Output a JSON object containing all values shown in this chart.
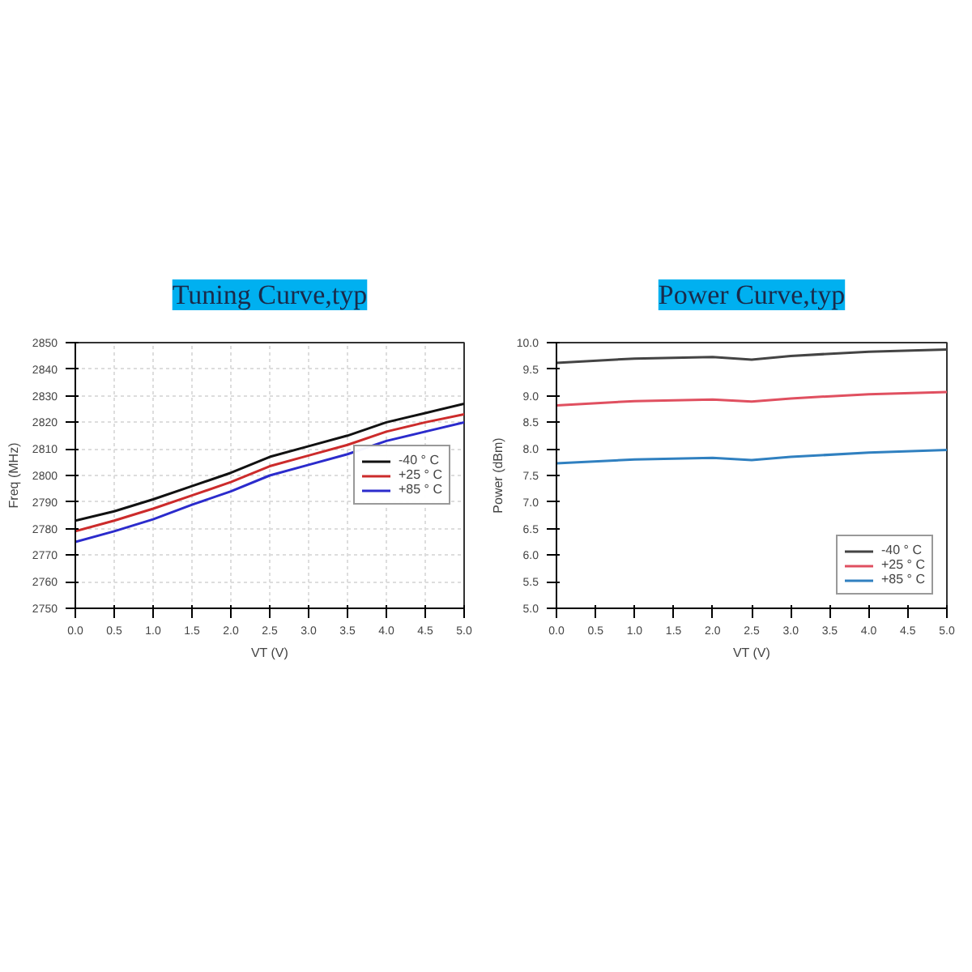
{
  "chart_data": [
    {
      "type": "line",
      "title": "Tuning Curve,typ",
      "xlabel": "VT (V)",
      "ylabel": "Freq (MHz)",
      "x": [
        0,
        0.5,
        1,
        1.5,
        2,
        2.5,
        3,
        3.5,
        4,
        4.5,
        5
      ],
      "series": [
        {
          "name": "-40 ° C",
          "color": "#111111",
          "values": [
            2783,
            2786.5,
            2791,
            2796,
            2801,
            2807,
            2811,
            2815,
            2820,
            2823.5,
            2827
          ]
        },
        {
          "name": "+25 ° C",
          "color": "#cc2b2b",
          "values": [
            2779,
            2783,
            2787.5,
            2792.5,
            2797.5,
            2803.5,
            2807.5,
            2811.5,
            2816.5,
            2820,
            2823
          ]
        },
        {
          "name": "+85 ° C",
          "color": "#2b2bcc",
          "values": [
            2775,
            2779,
            2783.5,
            2789,
            2794,
            2800,
            2804,
            2808,
            2813,
            2816.5,
            2820
          ]
        }
      ],
      "xlim": [
        0,
        5
      ],
      "xticks": [
        {
          "value": 0,
          "label": "0.0"
        },
        0.5,
        {
          "value": 1,
          "label": "1.0"
        },
        1.5,
        {
          "value": 2,
          "label": "2.0"
        },
        2.5,
        {
          "value": 3,
          "label": "3.0"
        },
        3.5,
        {
          "value": 4,
          "label": "4.0"
        },
        4.5,
        {
          "value": 5,
          "label": "5.0"
        }
      ],
      "ylim": [
        2750,
        2850
      ],
      "yticks": [
        2750,
        2760,
        2770,
        2780,
        2790,
        2800,
        2810,
        2820,
        2830,
        2840,
        2850
      ],
      "grid": true,
      "legend": "right"
    },
    {
      "type": "line",
      "title": "Power Curve,typ",
      "xlabel": "VT (V)",
      "ylabel": "Power (dBm)",
      "x": [
        0,
        1,
        2,
        2.5,
        3,
        4,
        5
      ],
      "series": [
        {
          "name": "-40 ° C",
          "color": "#444444",
          "values": [
            9.62,
            9.7,
            9.73,
            9.68,
            9.75,
            9.83,
            9.87
          ]
        },
        {
          "name": "+25 ° C",
          "color": "#e05060",
          "values": [
            8.82,
            8.9,
            8.93,
            8.89,
            8.95,
            9.03,
            9.07
          ]
        },
        {
          "name": "+85 ° C",
          "color": "#3080c0",
          "values": [
            7.73,
            7.8,
            7.83,
            7.79,
            7.85,
            7.93,
            7.98
          ]
        }
      ],
      "xlim": [
        0,
        5
      ],
      "xticks": [
        {
          "value": 0,
          "label": "0.0"
        },
        0.5,
        {
          "value": 1,
          "label": "1.0"
        },
        1.5,
        {
          "value": 2,
          "label": "2.0"
        },
        2.5,
        {
          "value": 3,
          "label": "3.0"
        },
        3.5,
        {
          "value": 4,
          "label": "4.0"
        },
        4.5,
        {
          "value": 5,
          "label": "5.0"
        }
      ],
      "ylim": [
        5,
        10
      ],
      "yticks": [
        {
          "value": 5,
          "label": "5.0"
        },
        5.5,
        {
          "value": 6,
          "label": "6.0"
        },
        6.5,
        {
          "value": 7,
          "label": "7.0"
        },
        7.5,
        {
          "value": 8,
          "label": "8.0"
        },
        8.5,
        {
          "value": 9,
          "label": "9.0"
        },
        9.5,
        {
          "value": 10,
          "label": "10.0"
        }
      ],
      "grid": false,
      "legend": "bottom right"
    }
  ]
}
